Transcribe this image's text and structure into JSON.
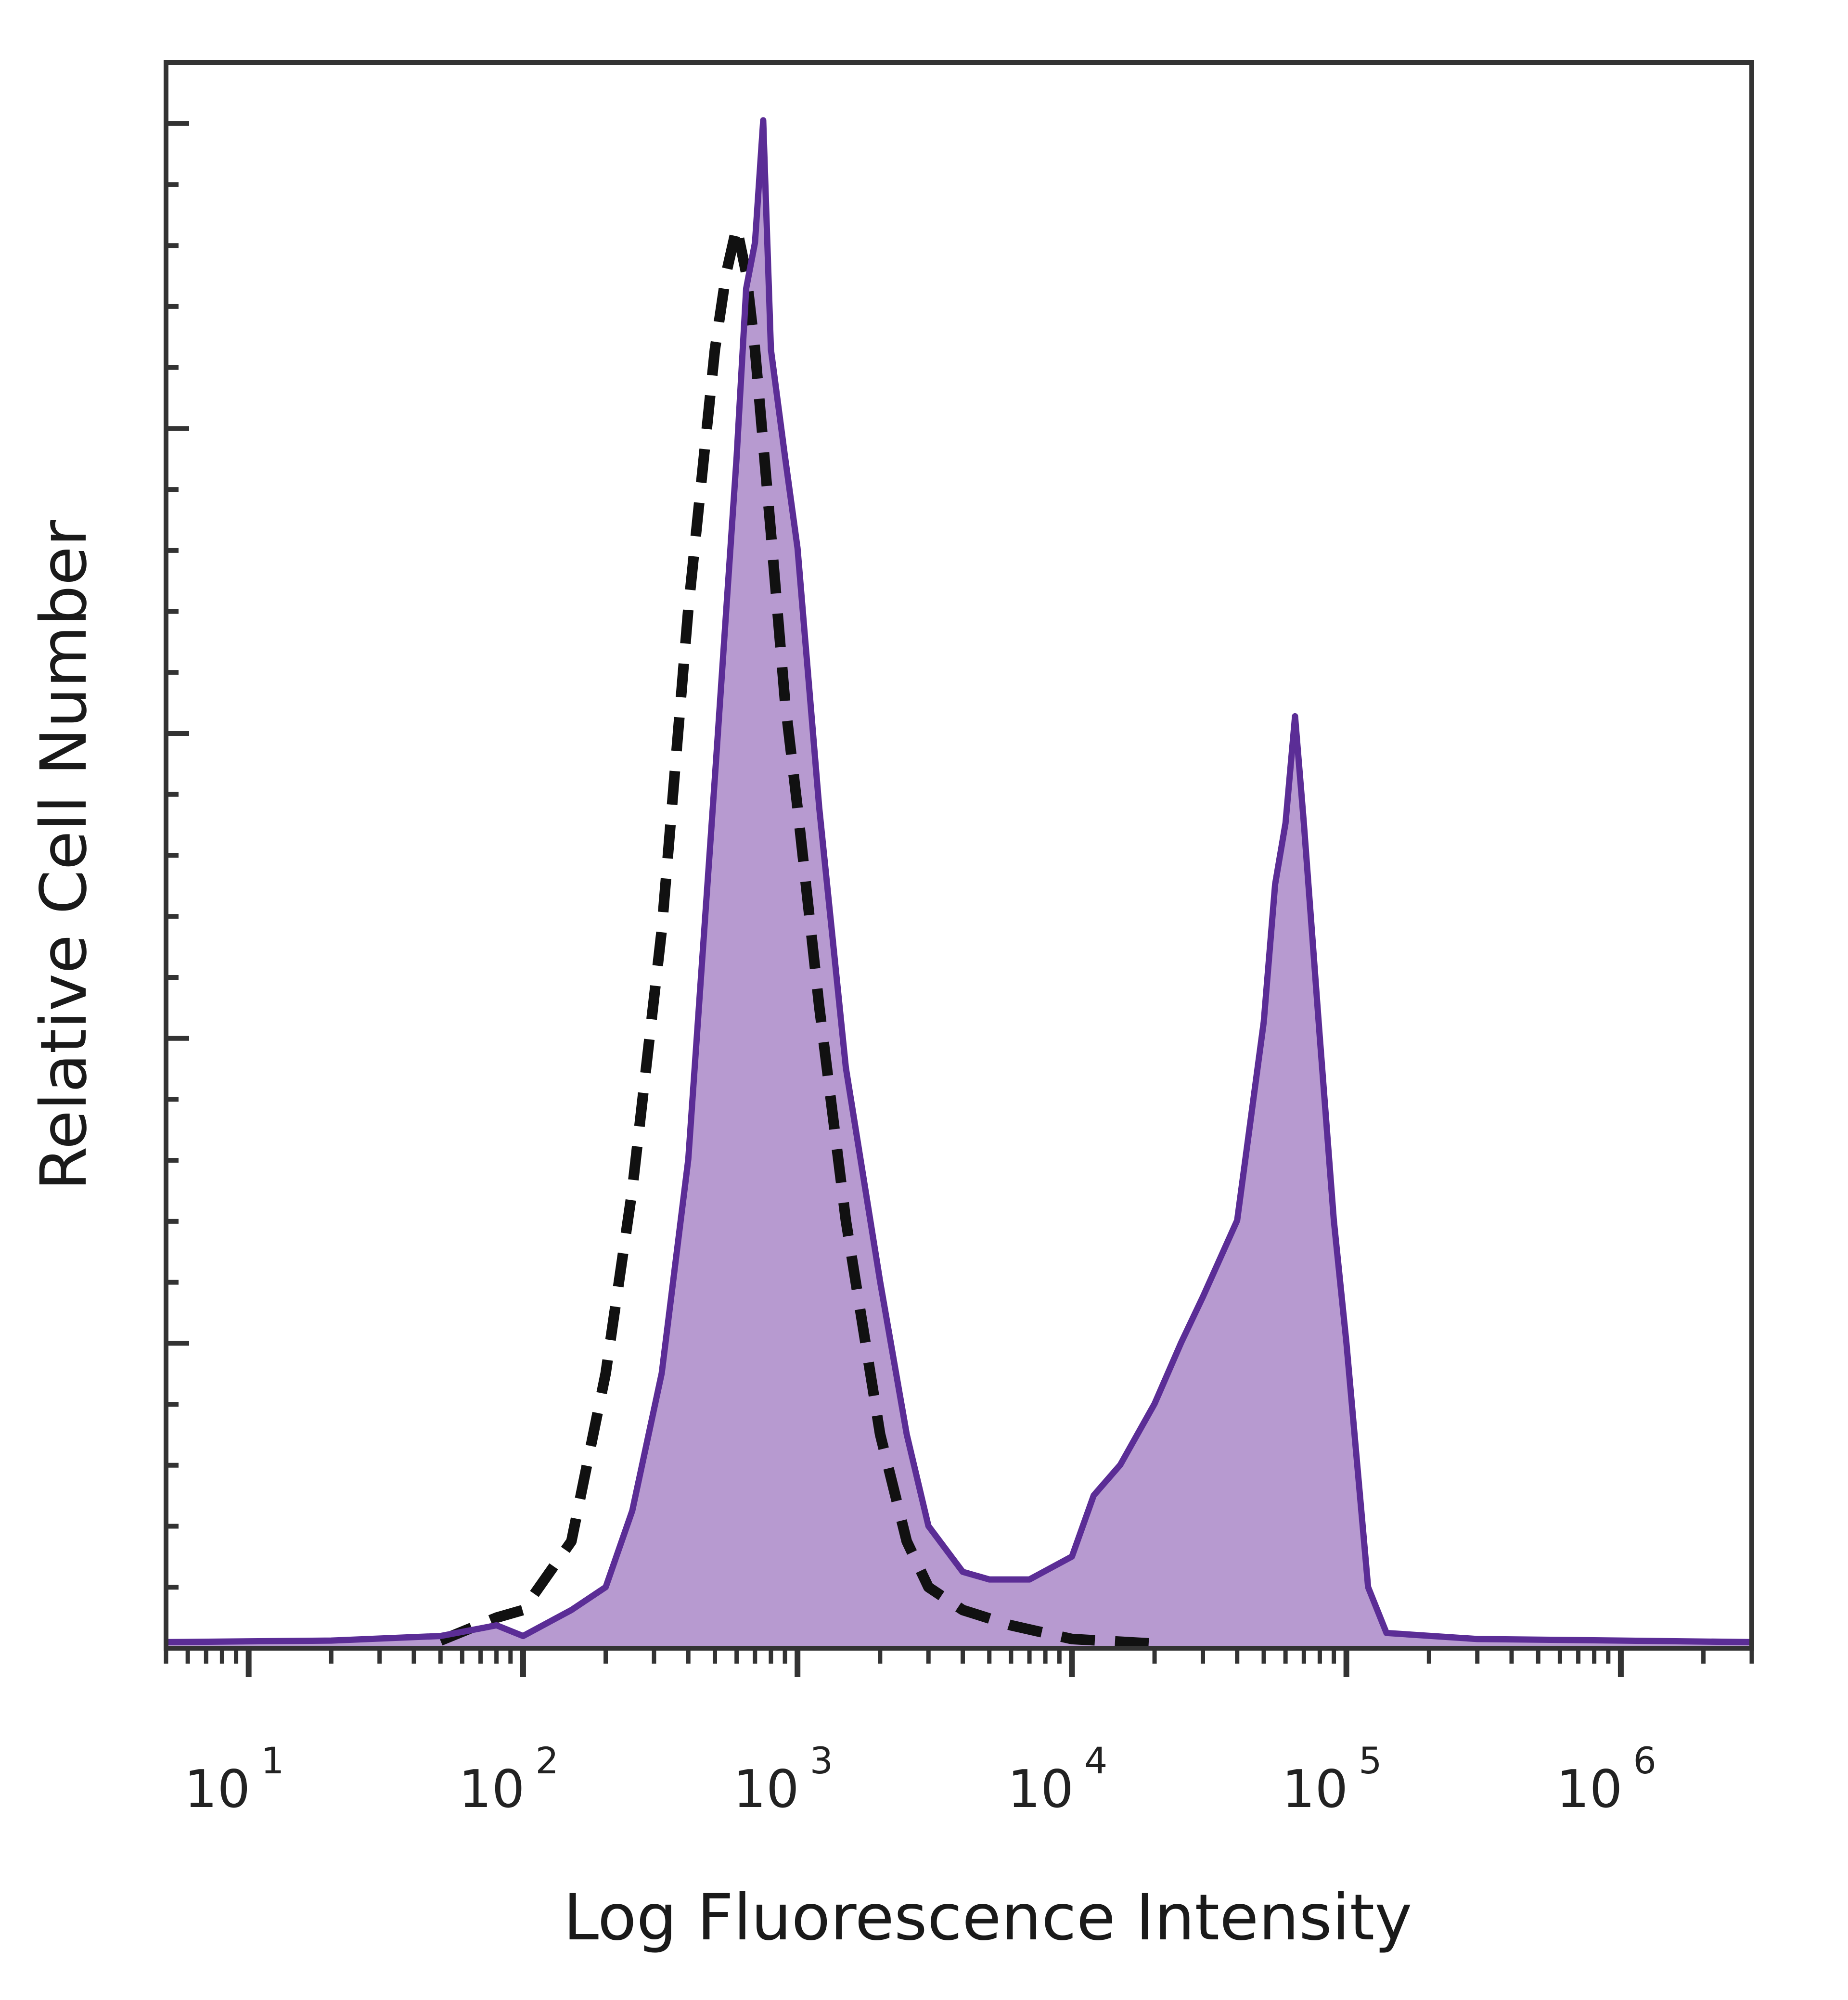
{
  "chart_data": {
    "type": "area",
    "title": "",
    "xlabel": "Log Fluorescence Intensity",
    "ylabel": "Relative Cell Number",
    "x_scale": "log",
    "xlim": [
      5,
      3000000
    ],
    "ylim": [
      0,
      100
    ],
    "grid": false,
    "legend": "none",
    "x_ticks": [
      {
        "base": "10",
        "exp": "1",
        "value": 10
      },
      {
        "base": "10",
        "exp": "2",
        "value": 100
      },
      {
        "base": "10",
        "exp": "3",
        "value": 1000
      },
      {
        "base": "10",
        "exp": "4",
        "value": 10000
      },
      {
        "base": "10",
        "exp": "5",
        "value": 100000
      },
      {
        "base": "10",
        "exp": "6",
        "value": 1000000
      }
    ],
    "colors": {
      "stained_fill": "#b79ad0",
      "stained_line": "#5b2d96",
      "control_line": "#111111",
      "frame": "#333333"
    },
    "series": [
      {
        "style": "filled-solid",
        "points": [
          [
            5,
            0.4
          ],
          [
            20,
            0.5
          ],
          [
            50,
            0.8
          ],
          [
            80,
            1.5
          ],
          [
            100,
            0.8
          ],
          [
            150,
            2.5
          ],
          [
            200,
            4
          ],
          [
            250,
            9
          ],
          [
            320,
            18
          ],
          [
            400,
            32
          ],
          [
            500,
            57
          ],
          [
            600,
            78
          ],
          [
            650,
            89
          ],
          [
            700,
            92
          ],
          [
            750,
            100
          ],
          [
            800,
            85
          ],
          [
            900,
            78
          ],
          [
            1000,
            72
          ],
          [
            1200,
            55
          ],
          [
            1500,
            38
          ],
          [
            2000,
            24
          ],
          [
            2500,
            14
          ],
          [
            3000,
            8
          ],
          [
            4000,
            5
          ],
          [
            5000,
            4.5
          ],
          [
            7000,
            4.5
          ],
          [
            10000,
            6
          ],
          [
            12000,
            10
          ],
          [
            15000,
            12
          ],
          [
            20000,
            16
          ],
          [
            25000,
            20
          ],
          [
            30000,
            23
          ],
          [
            40000,
            28
          ],
          [
            50000,
            41
          ],
          [
            55000,
            50
          ],
          [
            60000,
            54
          ],
          [
            65000,
            61
          ],
          [
            70000,
            54
          ],
          [
            80000,
            40
          ],
          [
            90000,
            28
          ],
          [
            100000,
            20
          ],
          [
            120000,
            4
          ],
          [
            140000,
            1
          ],
          [
            300000,
            0.6
          ],
          [
            1000000,
            0.5
          ],
          [
            3000000,
            0.4
          ]
        ]
      },
      {
        "style": "dashed",
        "points": [
          [
            50,
            0.5
          ],
          [
            80,
            2
          ],
          [
            100,
            2.5
          ],
          [
            150,
            7
          ],
          [
            200,
            18
          ],
          [
            250,
            30
          ],
          [
            320,
            47
          ],
          [
            400,
            68
          ],
          [
            500,
            85
          ],
          [
            550,
            90
          ],
          [
            600,
            93
          ],
          [
            650,
            90
          ],
          [
            700,
            85
          ],
          [
            800,
            73
          ],
          [
            900,
            62
          ],
          [
            1000,
            55
          ],
          [
            1200,
            42
          ],
          [
            1500,
            28
          ],
          [
            2000,
            14
          ],
          [
            2500,
            7
          ],
          [
            3000,
            4
          ],
          [
            4000,
            2.5
          ],
          [
            6000,
            1.5
          ],
          [
            10000,
            0.6
          ],
          [
            20000,
            0.3
          ]
        ]
      }
    ]
  }
}
